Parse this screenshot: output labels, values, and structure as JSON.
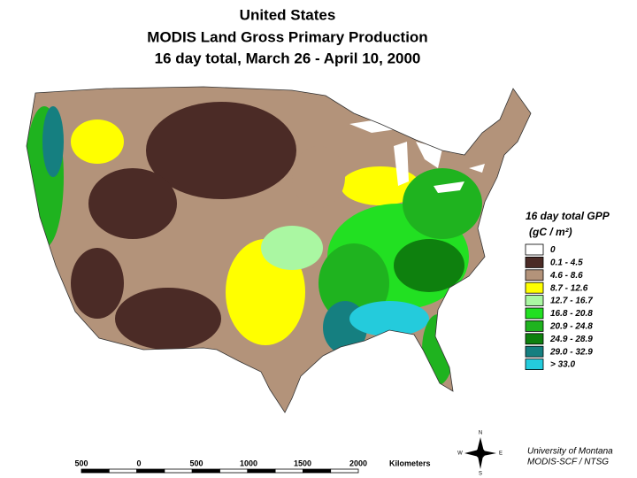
{
  "title": {
    "lines": [
      "United States",
      "MODIS Land Gross Primary Production",
      "16 day total, March 26 - April 10, 2000"
    ]
  },
  "legend": {
    "title": "16 day total GPP",
    "units": "(gC / m²)",
    "items": [
      {
        "label": "0",
        "color": "#ffffff"
      },
      {
        "label": "0.1 - 4.5",
        "color": "#4b2b26"
      },
      {
        "label": "4.6 - 8.6",
        "color": "#b3937a"
      },
      {
        "label": "8.7 - 12.6",
        "color": "#ffff00"
      },
      {
        "label": "12.7 - 16.7",
        "color": "#aaf7a2"
      },
      {
        "label": "16.8 - 20.8",
        "color": "#22e022"
      },
      {
        "label": "20.9 - 24.8",
        "color": "#1fb31f"
      },
      {
        "label": "24.9 - 28.9",
        "color": "#0e800e"
      },
      {
        "label": "29.0 - 32.9",
        "color": "#157f80"
      },
      {
        "label": "> 33.0",
        "color": "#24cbdc"
      }
    ]
  },
  "scale": {
    "labels": [
      "500",
      "0",
      "500",
      "1000",
      "1500",
      "2000"
    ],
    "unit": "Kilometers"
  },
  "compass": {
    "n": "N",
    "e": "E",
    "s": "S",
    "w": "W"
  },
  "credit": [
    "University of Montana",
    "MODIS-SCF / NTSG"
  ]
}
